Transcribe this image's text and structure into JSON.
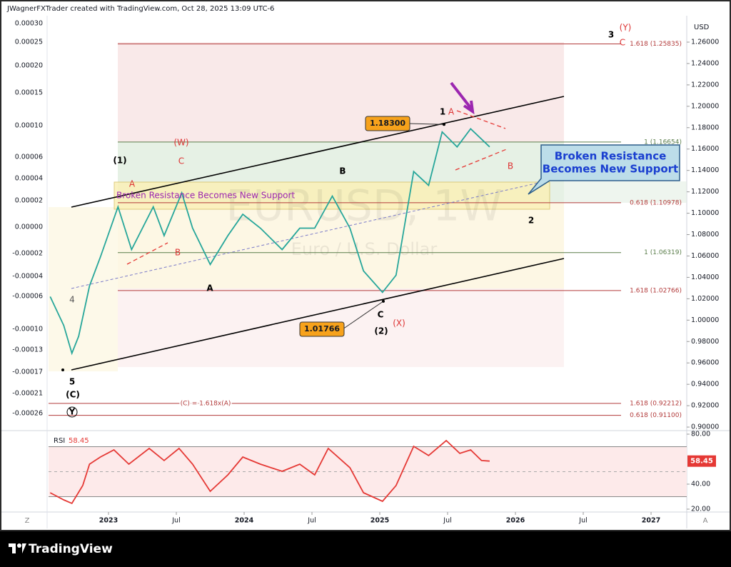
{
  "header": "JWagnerFXTrader created with TradingView.com, Oct 28, 2025 13:09 UTC-6",
  "brand": "TradingView",
  "left_axis_labels": [
    "0.00030",
    "0.00025",
    "0.00020",
    "0.00015",
    "0.00010",
    "0.00006",
    "0.00004",
    "0.00002",
    "0.00000",
    "-0.00002",
    "-0.00004",
    "-0.00006",
    "-0.00010",
    "-0.00013",
    "-0.00017",
    "-0.00021",
    "-0.00026"
  ],
  "corner_left": "Z",
  "corner_right": "A",
  "chart_data": [
    {
      "type": "line",
      "currency": "USD",
      "watermark": "EURUSD, 1W",
      "watermark_sub": "Euro / U.S. Dollar",
      "color": "#26a69a",
      "x": [
        2022.57,
        2022.67,
        2022.73,
        2022.78,
        2022.86,
        2022.94,
        2023.07,
        2023.17,
        2023.33,
        2023.41,
        2023.54,
        2023.62,
        2023.75,
        2023.88,
        2023.99,
        2024.12,
        2024.28,
        2024.41,
        2024.52,
        2024.65,
        2024.78,
        2024.88,
        2025.02,
        2025.12,
        2025.17,
        2025.25,
        2025.36,
        2025.46,
        2025.57,
        2025.67,
        2025.81
      ],
      "values": [
        1.022,
        0.995,
        0.969,
        0.985,
        1.032,
        1.059,
        1.106,
        1.066,
        1.106,
        1.079,
        1.119,
        1.086,
        1.052,
        1.079,
        1.099,
        1.086,
        1.066,
        1.086,
        1.086,
        1.116,
        1.086,
        1.046,
        1.026,
        1.042,
        1.079,
        1.139,
        1.126,
        1.176,
        1.162,
        1.179,
        1.162
      ],
      "xlim": [
        2022.558,
        2027.263
      ],
      "xticks": [
        2023,
        {
          "value": 2023.5,
          "label": "Jul"
        },
        2024,
        {
          "value": 2024.5,
          "label": "Jul"
        },
        2025,
        {
          "value": 2025.5,
          "label": "Jul"
        },
        2026,
        {
          "value": 2026.5,
          "label": "Jul"
        },
        2027
      ],
      "ylim": [
        0.8987,
        1.2847
      ],
      "yticks": [
        {
          "value": 0.9,
          "label": "0.90000"
        },
        {
          "value": 0.92,
          "label": "0.92000"
        },
        {
          "value": 0.94,
          "label": "0.94000"
        },
        {
          "value": 0.96,
          "label": "0.96000"
        },
        {
          "value": 0.98,
          "label": "0.98000"
        },
        {
          "value": 1.0,
          "label": "1.00000"
        },
        {
          "value": 1.02,
          "label": "1.02000"
        },
        {
          "value": 1.04,
          "label": "1.04000"
        },
        {
          "value": 1.06,
          "label": "1.06000"
        },
        {
          "value": 1.08,
          "label": "1.08000"
        },
        {
          "value": 1.1,
          "label": "1.10000"
        },
        {
          "value": 1.12,
          "label": "1.12000"
        },
        {
          "value": 1.14,
          "label": "1.14000"
        },
        {
          "value": 1.16,
          "label": "1.16000"
        },
        {
          "value": 1.18,
          "label": "1.18000"
        },
        {
          "value": 1.2,
          "label": "1.20000"
        },
        {
          "value": 1.22,
          "label": "1.22000"
        },
        {
          "value": 1.24,
          "label": "1.24000"
        },
        {
          "value": 1.26,
          "label": "1.26000"
        }
      ],
      "grid": false,
      "levels": [
        {
          "value": 1.25835,
          "label": "1.618 (1.25835)",
          "color": "#b23a3a"
        },
        {
          "value": 1.16654,
          "label": "1 (1.16654)",
          "color": "#5a7d4a"
        },
        {
          "value": 1.10978,
          "label": "0.618 (1.10978)",
          "color": "#b23a3a"
        },
        {
          "value": 1.06319,
          "label": "1 (1.06319)",
          "color": "#5a7d4a"
        },
        {
          "value": 1.02766,
          "label": "1.618 (1.02766)",
          "color": "#b23a3a"
        },
        {
          "value": 0.92212,
          "label": "1.618 (0.92212)",
          "color": "#b23a3a"
        },
        {
          "value": 0.911,
          "label": "0.618 (0.91100)",
          "color": "#b23a3a"
        }
      ],
      "fib_note": "(C) = 1.618x(A)",
      "price_tags": [
        {
          "value": 1.183,
          "label": "1.18300"
        },
        {
          "value": 1.01766,
          "label": "1.01766"
        }
      ],
      "band_text": "Broken Resistance Becomes New Support",
      "callout": [
        "Broken Resistance",
        "Becomes New Support"
      ],
      "wave_labels": [
        {
          "text": "3",
          "color": "#000"
        },
        {
          "text": "(Y)",
          "color": "#d33"
        },
        {
          "text": "C",
          "color": "#d33"
        },
        {
          "text": "1",
          "color": "#000"
        },
        {
          "text": "A",
          "color": "#d33"
        },
        {
          "text": "B",
          "color": "#d33"
        },
        {
          "text": "2",
          "color": "#000"
        },
        {
          "text": "B",
          "color": "#000"
        },
        {
          "text": "(W)",
          "color": "#d33"
        },
        {
          "text": "C",
          "color": "#d33"
        },
        {
          "text": "(1)",
          "color": "#000"
        },
        {
          "text": "A",
          "color": "#d33"
        },
        {
          "text": "B",
          "color": "#d33"
        },
        {
          "text": "A",
          "color": "#000"
        },
        {
          "text": "C",
          "color": "#000"
        },
        {
          "text": "(2)",
          "color": "#000"
        },
        {
          "text": "(X)",
          "color": "#d33"
        },
        {
          "text": "4",
          "color": "#555"
        },
        {
          "text": "5",
          "color": "#000"
        },
        {
          "text": "(C)",
          "color": "#000"
        },
        {
          "text": "Y",
          "color": "#000"
        }
      ]
    },
    {
      "type": "line",
      "title": "RSI",
      "value": 58.45,
      "color": "#e53935",
      "x": [
        2022.57,
        2022.67,
        2022.73,
        2022.81,
        2022.86,
        2022.94,
        2023.04,
        2023.15,
        2023.3,
        2023.41,
        2023.52,
        2023.62,
        2023.75,
        2023.88,
        2023.99,
        2024.12,
        2024.28,
        2024.41,
        2024.52,
        2024.62,
        2024.78,
        2024.88,
        2025.02,
        2025.12,
        2025.25,
        2025.36,
        2025.49,
        2025.59,
        2025.67,
        2025.75,
        2025.81
      ],
      "values": [
        33.1,
        27.4,
        24.6,
        38.9,
        56.0,
        61.7,
        67.4,
        56.0,
        68.6,
        58.9,
        68.6,
        56.0,
        34.3,
        47.4,
        61.7,
        56.0,
        50.3,
        56.0,
        47.4,
        68.6,
        53.1,
        33.1,
        26.3,
        38.9,
        70.3,
        62.9,
        74.9,
        64.6,
        67.4,
        58.9,
        58.45
      ],
      "ylim": [
        17.7,
        81.7
      ],
      "yticks": [
        {
          "value": 80,
          "label": "80.00"
        },
        {
          "value": 40,
          "label": "40.00"
        },
        {
          "value": 20,
          "label": "20.00"
        }
      ],
      "upper_band": 70,
      "lower_band": 30,
      "midline": 50
    }
  ]
}
